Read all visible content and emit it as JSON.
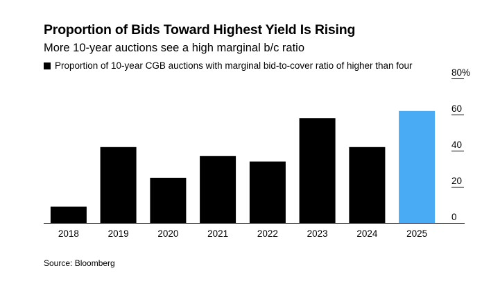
{
  "chart_data": {
    "type": "bar",
    "title": "Proportion of Bids Toward Highest Yield Is Rising",
    "subtitle": "More 10-year auctions see a high marginal b/c ratio",
    "legend": [
      "Proportion of 10-year CGB auctions with marginal bid-to-cover ratio of higher than four"
    ],
    "categories": [
      "2018",
      "2019",
      "2020",
      "2021",
      "2022",
      "2023",
      "2024",
      "2025"
    ],
    "values": [
      9,
      42,
      25,
      37,
      34,
      58,
      42,
      62
    ],
    "highlight_index": 7,
    "ylim": [
      0,
      80
    ],
    "yticks": [
      0,
      20,
      40,
      60,
      80
    ],
    "ytick_labels": [
      "0",
      "20",
      "40",
      "60",
      "80%"
    ],
    "xlabel": "",
    "ylabel": "",
    "grid": false,
    "yaxis_position": "right",
    "legend_position": "top-left",
    "colors": {
      "bar": "#000000",
      "highlight": "#4aabf5",
      "text": "#000000",
      "tick": "#000000"
    }
  },
  "source": "Source: Bloomberg"
}
